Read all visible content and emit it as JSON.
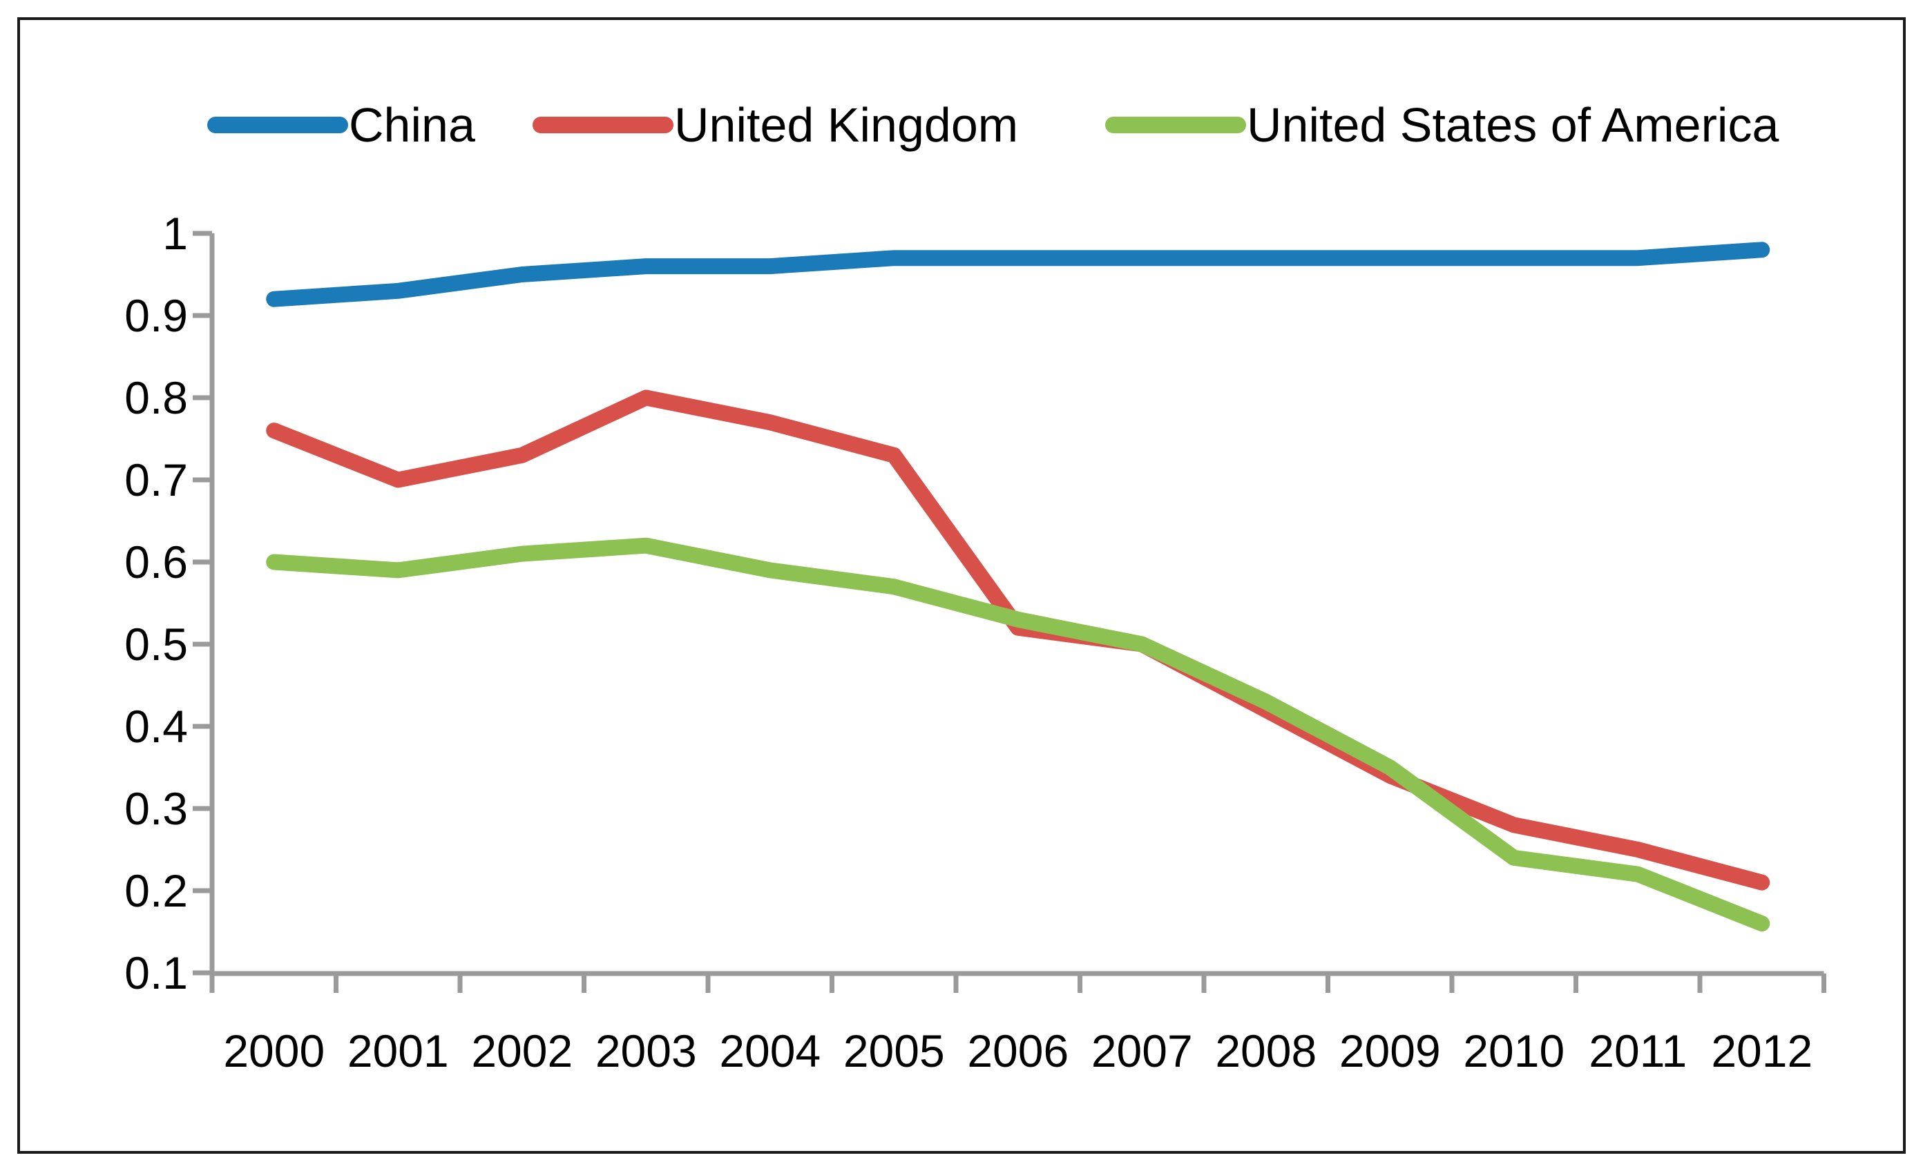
{
  "chart_data": {
    "type": "line",
    "title": "",
    "xlabel": "",
    "ylabel": "",
    "categories": [
      "2000",
      "2001",
      "2002",
      "2003",
      "2004",
      "2005",
      "2006",
      "2007",
      "2008",
      "2009",
      "2010",
      "2011",
      "2012"
    ],
    "series": [
      {
        "name": "China",
        "color": "#1B7AB8",
        "values": [
          0.92,
          0.93,
          0.95,
          0.96,
          0.96,
          0.97,
          0.97,
          0.97,
          0.97,
          0.97,
          0.97,
          0.97,
          0.98
        ]
      },
      {
        "name": "United Kingdom",
        "color": "#D8504A",
        "values": [
          0.76,
          0.7,
          0.73,
          0.8,
          0.77,
          0.73,
          0.52,
          0.5,
          0.42,
          0.34,
          0.28,
          0.25,
          0.21
        ]
      },
      {
        "name": "United States of America",
        "color": "#8DC152",
        "values": [
          0.6,
          0.59,
          0.61,
          0.62,
          0.59,
          0.57,
          0.53,
          0.5,
          0.43,
          0.35,
          0.24,
          0.22,
          0.16
        ]
      }
    ],
    "ylim": [
      0.1,
      1.0
    ],
    "ytick_step": 0.1,
    "ytick_labels": [
      "1",
      "0.9",
      "0.8",
      "0.7",
      "0.6",
      "0.5",
      "0.4",
      "0.3",
      "0.2",
      "0.1"
    ],
    "legend_position": "top",
    "grid": false,
    "axis_color": "#9A9A9A",
    "text_color": "#000000",
    "border_color": "#1A1A1A",
    "background_color": "#FFFFFF"
  }
}
